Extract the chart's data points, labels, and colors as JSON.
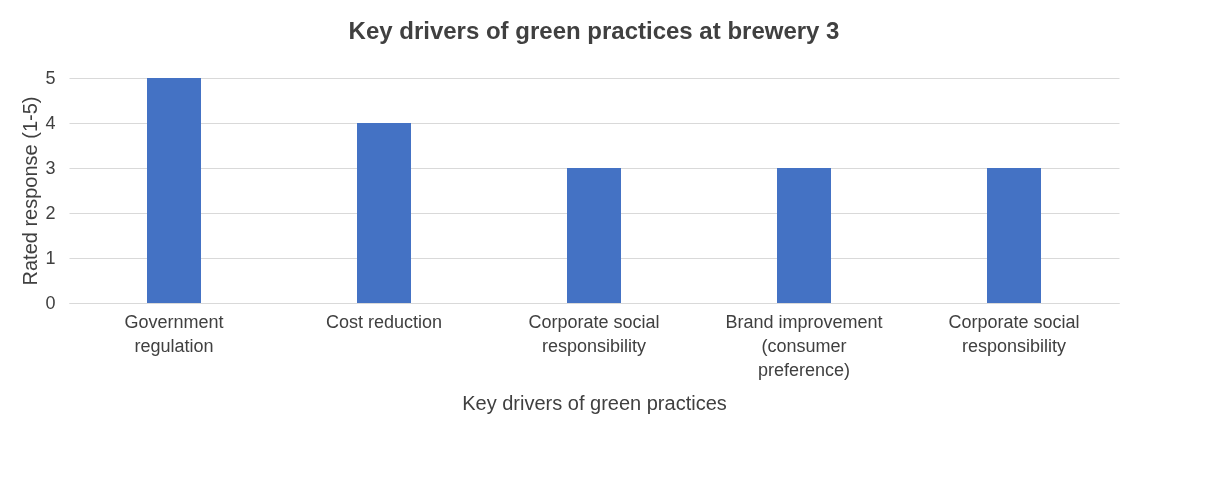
{
  "chart_data": {
    "type": "bar",
    "title": "Key drivers of green practices at brewery 3",
    "xlabel": "Key drivers of green practices",
    "ylabel": "Rated response (1-5)",
    "categories": [
      "Government regulation",
      "Cost reduction",
      "Corporate social responsibility",
      "Brand improvement (consumer preference)",
      "Corporate social responsibility"
    ],
    "values": [
      5,
      4,
      3,
      3,
      3
    ],
    "color": "#4472c4",
    "ylim": [
      0,
      5
    ],
    "yticks": [
      0,
      1,
      2,
      3,
      4,
      5
    ],
    "grid": "y"
  }
}
